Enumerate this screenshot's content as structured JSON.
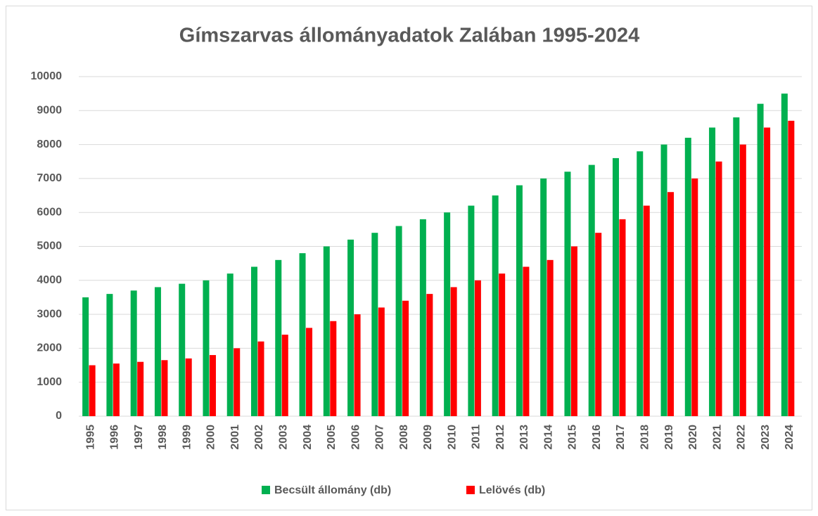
{
  "chart_data": {
    "type": "bar",
    "title": "Gímszarvas állományadatok Zalában 1995-2024",
    "categories": [
      "1995",
      "1996",
      "1997",
      "1998",
      "1999",
      "2000",
      "2001",
      "2002",
      "2003",
      "2004",
      "2005",
      "2006",
      "2007",
      "2008",
      "2009",
      "2010",
      "2011",
      "2012",
      "2013",
      "2014",
      "2015",
      "2016",
      "2017",
      "2018",
      "2019",
      "2020",
      "2021",
      "2022",
      "2023",
      "2024"
    ],
    "series": [
      {
        "name": "Becsült állomány (db)",
        "color": "#00b050",
        "values": [
          3500,
          3600,
          3700,
          3800,
          3900,
          4000,
          4200,
          4400,
          4600,
          4800,
          5000,
          5200,
          5400,
          5600,
          5800,
          6000,
          6200,
          6500,
          6800,
          7000,
          7200,
          7400,
          7600,
          7800,
          8000,
          8200,
          8500,
          8800,
          9200,
          9500
        ]
      },
      {
        "name": "Lelövés (db)",
        "color": "#ff0000",
        "values": [
          1500,
          1550,
          1600,
          1650,
          1700,
          1800,
          2000,
          2200,
          2400,
          2600,
          2800,
          3000,
          3200,
          3400,
          3600,
          3800,
          4000,
          4200,
          4400,
          4600,
          5000,
          5400,
          5800,
          6200,
          6600,
          7000,
          7500,
          8000,
          8500,
          8700
        ]
      }
    ],
    "ylim": [
      0,
      10000
    ],
    "yticks": [
      0,
      1000,
      2000,
      3000,
      4000,
      5000,
      6000,
      7000,
      8000,
      9000,
      10000
    ],
    "grid": true,
    "legend": "bottom"
  }
}
